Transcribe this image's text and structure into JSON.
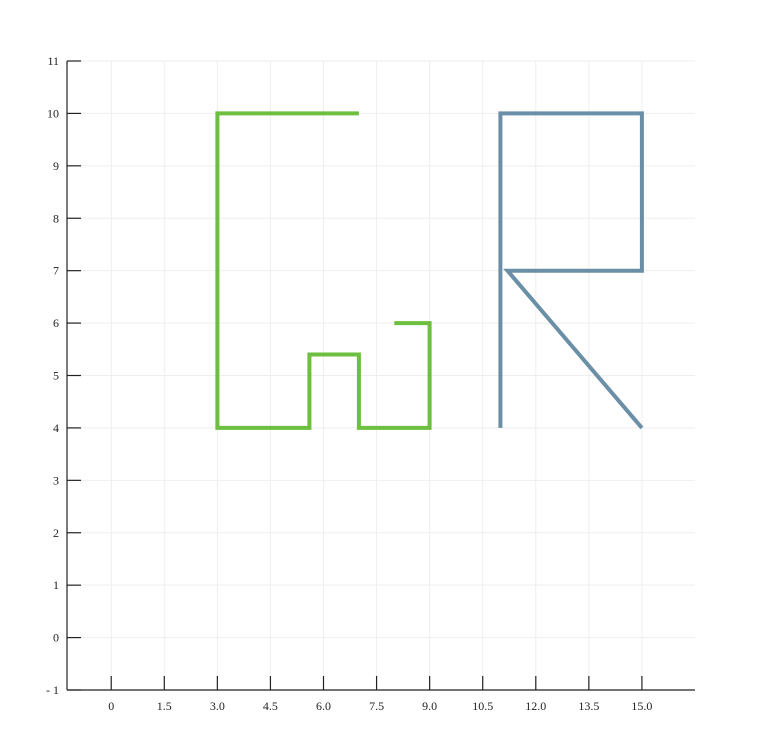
{
  "chart_data": {
    "type": "line",
    "title": "",
    "xlabel": "",
    "ylabel": "",
    "xlim": [
      -1.25,
      16.5
    ],
    "ylim": [
      -1,
      11
    ],
    "grid": true,
    "x_ticks": [
      "0",
      "1.5",
      "3.0",
      "4.5",
      "6.0",
      "7.5",
      "9.0",
      "10.5",
      "12.0",
      "13.5",
      "15.0"
    ],
    "x_tick_values": [
      0,
      1.5,
      3,
      4.5,
      6,
      7.5,
      9,
      10.5,
      12,
      13.5,
      15
    ],
    "y_ticks": [
      "- 1",
      "0",
      "1",
      "2",
      "3",
      "4",
      "5",
      "6",
      "7",
      "8",
      "9",
      "10",
      "11"
    ],
    "y_tick_values": [
      -1,
      0,
      1,
      2,
      3,
      4,
      5,
      6,
      7,
      8,
      9,
      10,
      11
    ],
    "series": [
      {
        "color": "#6cbf3f",
        "points": [
          [
            7,
            10
          ],
          [
            3,
            10
          ],
          [
            3,
            4
          ],
          [
            5.6,
            4
          ],
          [
            5.6,
            5.4
          ],
          [
            7,
            5.4
          ],
          [
            7,
            4
          ],
          [
            9,
            4
          ],
          [
            9,
            6
          ],
          [
            8,
            6
          ]
        ]
      },
      {
        "color": "#6a8fa6",
        "points": [
          [
            11,
            4
          ],
          [
            11,
            10
          ],
          [
            15,
            10
          ],
          [
            15,
            7
          ],
          [
            11.2,
            7
          ],
          [
            15,
            4
          ]
        ]
      }
    ]
  }
}
